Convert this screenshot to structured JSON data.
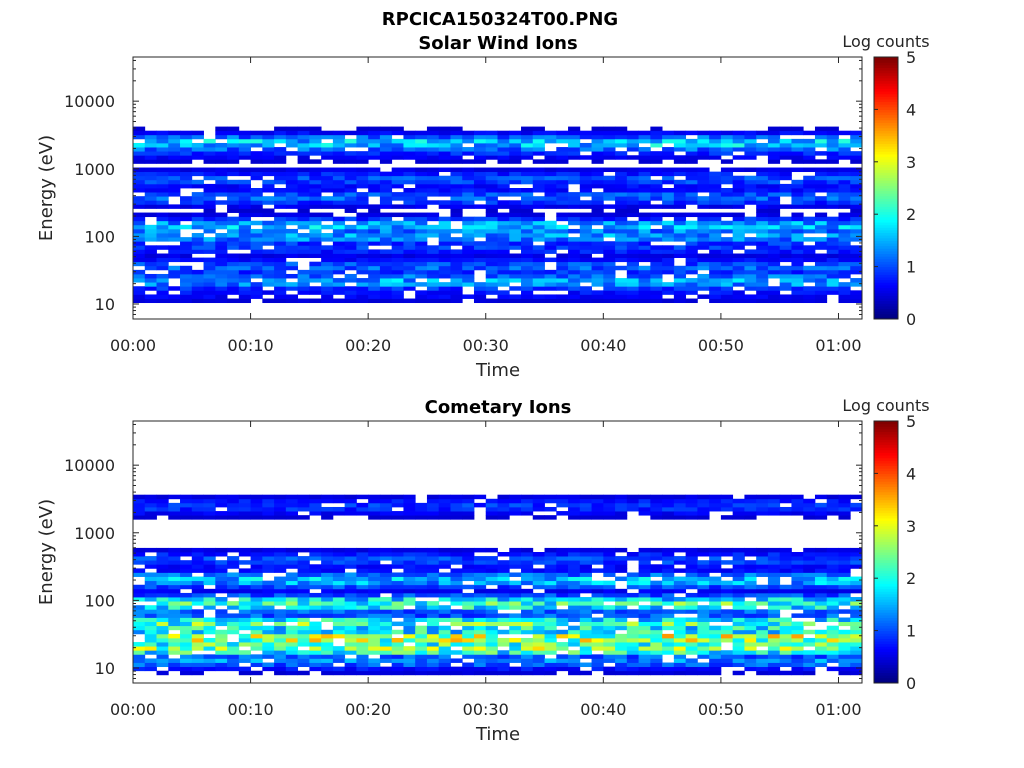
{
  "figure_title": "RPCICA150324T00.PNG",
  "chart_data": [
    {
      "type": "heatmap",
      "title": "Solar Wind Ions",
      "xlabel": "Time",
      "ylabel": "Energy (eV)",
      "y_scale": "log",
      "ylim": [
        6,
        45000
      ],
      "x_ticks": [
        "00:00",
        "00:10",
        "00:20",
        "00:30",
        "00:40",
        "00:50",
        "01:00"
      ],
      "x_tick_minutes": [
        0,
        10,
        20,
        30,
        40,
        50,
        60
      ],
      "xlim_minutes": [
        0,
        62
      ],
      "y_ticks": [
        "10",
        "100",
        "1000",
        "10000"
      ],
      "y_tick_values": [
        10,
        100,
        1000,
        10000
      ],
      "colorbar_label": "Log counts",
      "colorbar_ticks": [
        "0",
        "1",
        "2",
        "3",
        "4",
        "5"
      ],
      "clim": [
        0,
        5
      ],
      "colormap": "jet",
      "energy_bands": [
        {
          "energy": 2400,
          "level": 1.4
        },
        {
          "energy": 1900,
          "level": 0.6
        },
        {
          "energy": 700,
          "level": 0.7
        },
        {
          "energy": 380,
          "level": 0.8
        },
        {
          "energy": 140,
          "level": 1.3
        },
        {
          "energy": 100,
          "level": 1.1
        },
        {
          "energy": 70,
          "level": 0.6
        },
        {
          "energy": 35,
          "level": 0.8
        },
        {
          "energy": 22,
          "level": 1.2
        },
        {
          "energy": 15,
          "level": 0.4
        }
      ]
    },
    {
      "type": "heatmap",
      "title": "Cometary Ions",
      "xlabel": "Time",
      "ylabel": "Energy (eV)",
      "y_scale": "log",
      "ylim": [
        6,
        45000
      ],
      "x_ticks": [
        "00:00",
        "00:10",
        "00:20",
        "00:30",
        "00:40",
        "00:50",
        "01:00"
      ],
      "x_tick_minutes": [
        0,
        10,
        20,
        30,
        40,
        50,
        60
      ],
      "xlim_minutes": [
        0,
        62
      ],
      "y_ticks": [
        "10",
        "100",
        "1000",
        "10000"
      ],
      "y_tick_values": [
        10,
        100,
        1000,
        10000
      ],
      "colorbar_label": "Log counts",
      "colorbar_ticks": [
        "0",
        "1",
        "2",
        "3",
        "4",
        "5"
      ],
      "clim": [
        0,
        5
      ],
      "colormap": "jet",
      "energy_bands": [
        {
          "energy": 2500,
          "level": 0.6
        },
        {
          "energy": 400,
          "level": 0.7
        },
        {
          "energy": 200,
          "level": 1.3
        },
        {
          "energy": 90,
          "level": 1.9
        },
        {
          "energy": 45,
          "level": 2.0
        },
        {
          "energy": 28,
          "level": 2.6
        },
        {
          "energy": 20,
          "level": 2.3
        },
        {
          "energy": 13,
          "level": 1.0
        }
      ]
    }
  ]
}
